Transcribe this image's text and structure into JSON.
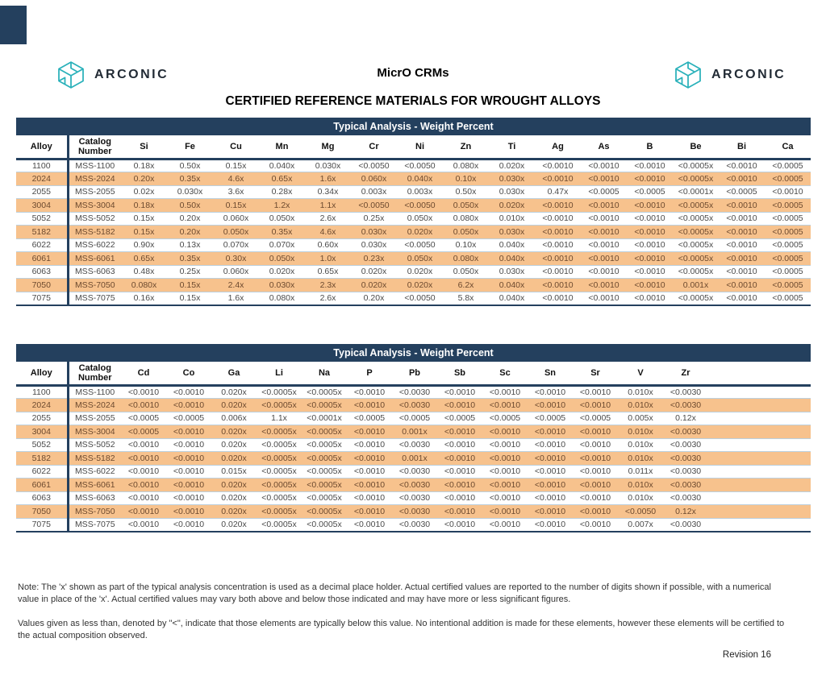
{
  "brand": {
    "wordmark": "ARCONIC",
    "logo_color": "#2ab1ba",
    "wordmark_color": "#222b35"
  },
  "colors": {
    "navy": "#24405e",
    "stripe_orange": "#f7c28d",
    "row_separator": "#bcd0de",
    "text_normal": "#4a4a4a",
    "text_on_orange": "#6d4a2f"
  },
  "header": {
    "doc_title": "MicrO CRMs",
    "subtitle": "CERTIFIED REFERENCE MATERIALS FOR WROUGHT ALLOYS"
  },
  "table1": {
    "title": "Typical Analysis - Weight Percent",
    "col_alloy": "Alloy",
    "col_catalog": "Catalog\nNumber",
    "elements": [
      "Si",
      "Fe",
      "Cu",
      "Mn",
      "Mg",
      "Cr",
      "Ni",
      "Zn",
      "Ti",
      "Ag",
      "As",
      "B",
      "Be",
      "Bi",
      "Ca"
    ],
    "filler": false,
    "rows": [
      {
        "alloy": "1100",
        "catalog": "MSS-1100",
        "values": [
          "0.18x",
          "0.50x",
          "0.15x",
          "0.040x",
          "0.030x",
          "<0.0050",
          "<0.0050",
          "0.080x",
          "0.020x",
          "<0.0010",
          "<0.0010",
          "<0.0010",
          "<0.0005x",
          "<0.0010",
          "<0.0005"
        ]
      },
      {
        "alloy": "2024",
        "catalog": "MSS-2024",
        "values": [
          "0.20x",
          "0.35x",
          "4.6x",
          "0.65x",
          "1.6x",
          "0.060x",
          "0.040x",
          "0.10x",
          "0.030x",
          "<0.0010",
          "<0.0010",
          "<0.0010",
          "<0.0005x",
          "<0.0010",
          "<0.0005"
        ]
      },
      {
        "alloy": "2055",
        "catalog": "MSS-2055",
        "values": [
          "0.02x",
          "0.030x",
          "3.6x",
          "0.28x",
          "0.34x",
          "0.003x",
          "0.003x",
          "0.50x",
          "0.030x",
          "0.47x",
          "<0.0005",
          "<0.0005",
          "<0.0001x",
          "<0.0005",
          "<0.0010"
        ]
      },
      {
        "alloy": "3004",
        "catalog": "MSS-3004",
        "values": [
          "0.18x",
          "0.50x",
          "0.15x",
          "1.2x",
          "1.1x",
          "<0.0050",
          "<0.0050",
          "0.050x",
          "0.020x",
          "<0.0010",
          "<0.0010",
          "<0.0010",
          "<0.0005x",
          "<0.0010",
          "<0.0005"
        ]
      },
      {
        "alloy": "5052",
        "catalog": "MSS-5052",
        "values": [
          "0.15x",
          "0.20x",
          "0.060x",
          "0.050x",
          "2.6x",
          "0.25x",
          "0.050x",
          "0.080x",
          "0.010x",
          "<0.0010",
          "<0.0010",
          "<0.0010",
          "<0.0005x",
          "<0.0010",
          "<0.0005"
        ]
      },
      {
        "alloy": "5182",
        "catalog": "MSS-5182",
        "values": [
          "0.15x",
          "0.20x",
          "0.050x",
          "0.35x",
          "4.6x",
          "0.030x",
          "0.020x",
          "0.050x",
          "0.030x",
          "<0.0010",
          "<0.0010",
          "<0.0010",
          "<0.0005x",
          "<0.0010",
          "<0.0005"
        ]
      },
      {
        "alloy": "6022",
        "catalog": "MSS-6022",
        "values": [
          "0.90x",
          "0.13x",
          "0.070x",
          "0.070x",
          "0.60x",
          "0.030x",
          "<0.0050",
          "0.10x",
          "0.040x",
          "<0.0010",
          "<0.0010",
          "<0.0010",
          "<0.0005x",
          "<0.0010",
          "<0.0005"
        ]
      },
      {
        "alloy": "6061",
        "catalog": "MSS-6061",
        "values": [
          "0.65x",
          "0.35x",
          "0.30x",
          "0.050x",
          "1.0x",
          "0.23x",
          "0.050x",
          "0.080x",
          "0.040x",
          "<0.0010",
          "<0.0010",
          "<0.0010",
          "<0.0005x",
          "<0.0010",
          "<0.0005"
        ]
      },
      {
        "alloy": "6063",
        "catalog": "MSS-6063",
        "values": [
          "0.48x",
          "0.25x",
          "0.060x",
          "0.020x",
          "0.65x",
          "0.020x",
          "0.020x",
          "0.050x",
          "0.030x",
          "<0.0010",
          "<0.0010",
          "<0.0010",
          "<0.0005x",
          "<0.0010",
          "<0.0005"
        ]
      },
      {
        "alloy": "7050",
        "catalog": "MSS-7050",
        "values": [
          "0.080x",
          "0.15x",
          "2.4x",
          "0.030x",
          "2.3x",
          "0.020x",
          "0.020x",
          "6.2x",
          "0.040x",
          "<0.0010",
          "<0.0010",
          "<0.0010",
          "0.001x",
          "<0.0010",
          "<0.0005"
        ]
      },
      {
        "alloy": "7075",
        "catalog": "MSS-7075",
        "values": [
          "0.16x",
          "0.15x",
          "1.6x",
          "0.080x",
          "2.6x",
          "0.20x",
          "<0.0050",
          "5.8x",
          "0.040x",
          "<0.0010",
          "<0.0010",
          "<0.0010",
          "<0.0005x",
          "<0.0010",
          "<0.0005"
        ]
      }
    ]
  },
  "table2": {
    "title": "Typical Analysis - Weight Percent",
    "col_alloy": "Alloy",
    "col_catalog": "Catalog\nNumber",
    "elements": [
      "Cd",
      "Co",
      "Ga",
      "Li",
      "Na",
      "P",
      "Pb",
      "Sb",
      "Sc",
      "Sn",
      "Sr",
      "V",
      "Zr"
    ],
    "filler": true,
    "rows": [
      {
        "alloy": "1100",
        "catalog": "MSS-1100",
        "values": [
          "<0.0010",
          "<0.0010",
          "0.020x",
          "<0.0005x",
          "<0.0005x",
          "<0.0010",
          "<0.0030",
          "<0.0010",
          "<0.0010",
          "<0.0010",
          "<0.0010",
          "0.010x",
          "<0.0030"
        ]
      },
      {
        "alloy": "2024",
        "catalog": "MSS-2024",
        "values": [
          "<0.0010",
          "<0.0010",
          "0.020x",
          "<0.0005x",
          "<0.0005x",
          "<0.0010",
          "<0.0030",
          "<0.0010",
          "<0.0010",
          "<0.0010",
          "<0.0010",
          "0.010x",
          "<0.0030"
        ]
      },
      {
        "alloy": "2055",
        "catalog": "MSS-2055",
        "values": [
          "<0.0005",
          "<0.0005",
          "0.006x",
          "1.1x",
          "<0.0001x",
          "<0.0005",
          "<0.0005",
          "<0.0005",
          "<0.0005",
          "<0.0005",
          "<0.0005",
          "0.005x",
          "0.12x"
        ]
      },
      {
        "alloy": "3004",
        "catalog": "MSS-3004",
        "values": [
          "<0.0005",
          "<0.0010",
          "0.020x",
          "<0.0005x",
          "<0.0005x",
          "<0.0010",
          "0.001x",
          "<0.0010",
          "<0.0010",
          "<0.0010",
          "<0.0010",
          "0.010x",
          "<0.0030"
        ]
      },
      {
        "alloy": "5052",
        "catalog": "MSS-5052",
        "values": [
          "<0.0010",
          "<0.0010",
          "0.020x",
          "<0.0005x",
          "<0.0005x",
          "<0.0010",
          "<0.0030",
          "<0.0010",
          "<0.0010",
          "<0.0010",
          "<0.0010",
          "0.010x",
          "<0.0030"
        ]
      },
      {
        "alloy": "5182",
        "catalog": "MSS-5182",
        "values": [
          "<0.0010",
          "<0.0010",
          "0.020x",
          "<0.0005x",
          "<0.0005x",
          "<0.0010",
          "0.001x",
          "<0.0010",
          "<0.0010",
          "<0.0010",
          "<0.0010",
          "0.010x",
          "<0.0030"
        ]
      },
      {
        "alloy": "6022",
        "catalog": "MSS-6022",
        "values": [
          "<0.0010",
          "<0.0010",
          "0.015x",
          "<0.0005x",
          "<0.0005x",
          "<0.0010",
          "<0.0030",
          "<0.0010",
          "<0.0010",
          "<0.0010",
          "<0.0010",
          "0.011x",
          "<0.0030"
        ]
      },
      {
        "alloy": "6061",
        "catalog": "MSS-6061",
        "values": [
          "<0.0010",
          "<0.0010",
          "0.020x",
          "<0.0005x",
          "<0.0005x",
          "<0.0010",
          "<0.0030",
          "<0.0010",
          "<0.0010",
          "<0.0010",
          "<0.0010",
          "0.010x",
          "<0.0030"
        ]
      },
      {
        "alloy": "6063",
        "catalog": "MSS-6063",
        "values": [
          "<0.0010",
          "<0.0010",
          "0.020x",
          "<0.0005x",
          "<0.0005x",
          "<0.0010",
          "<0.0030",
          "<0.0010",
          "<0.0010",
          "<0.0010",
          "<0.0010",
          "0.010x",
          "<0.0030"
        ]
      },
      {
        "alloy": "7050",
        "catalog": "MSS-7050",
        "values": [
          "<0.0010",
          "<0.0010",
          "0.020x",
          "<0.0005x",
          "<0.0005x",
          "<0.0010",
          "<0.0030",
          "<0.0010",
          "<0.0010",
          "<0.0010",
          "<0.0010",
          "<0.0050",
          "0.12x"
        ]
      },
      {
        "alloy": "7075",
        "catalog": "MSS-7075",
        "values": [
          "<0.0010",
          "<0.0010",
          "0.020x",
          "<0.0005x",
          "<0.0005x",
          "<0.0010",
          "<0.0030",
          "<0.0010",
          "<0.0010",
          "<0.0010",
          "<0.0010",
          "0.007x",
          "<0.0030"
        ]
      }
    ]
  },
  "notes": {
    "note1": "Note:  The 'x' shown as part of the typical analysis concentration is used as a decimal place holder.  Actual certified values are reported to the number of digits shown if possible, with a numerical value in place of the 'x'.  Actual certified values may vary both above and below those indicated and may have more or less significant figures.",
    "note2": "Values given as less than, denoted by \"<\", indicate that those elements are typically below this value.  No intentional addition is made for these elements, however  these elements will be certified to the actual composition observed."
  },
  "footer": {
    "revision": "Revision 16"
  }
}
